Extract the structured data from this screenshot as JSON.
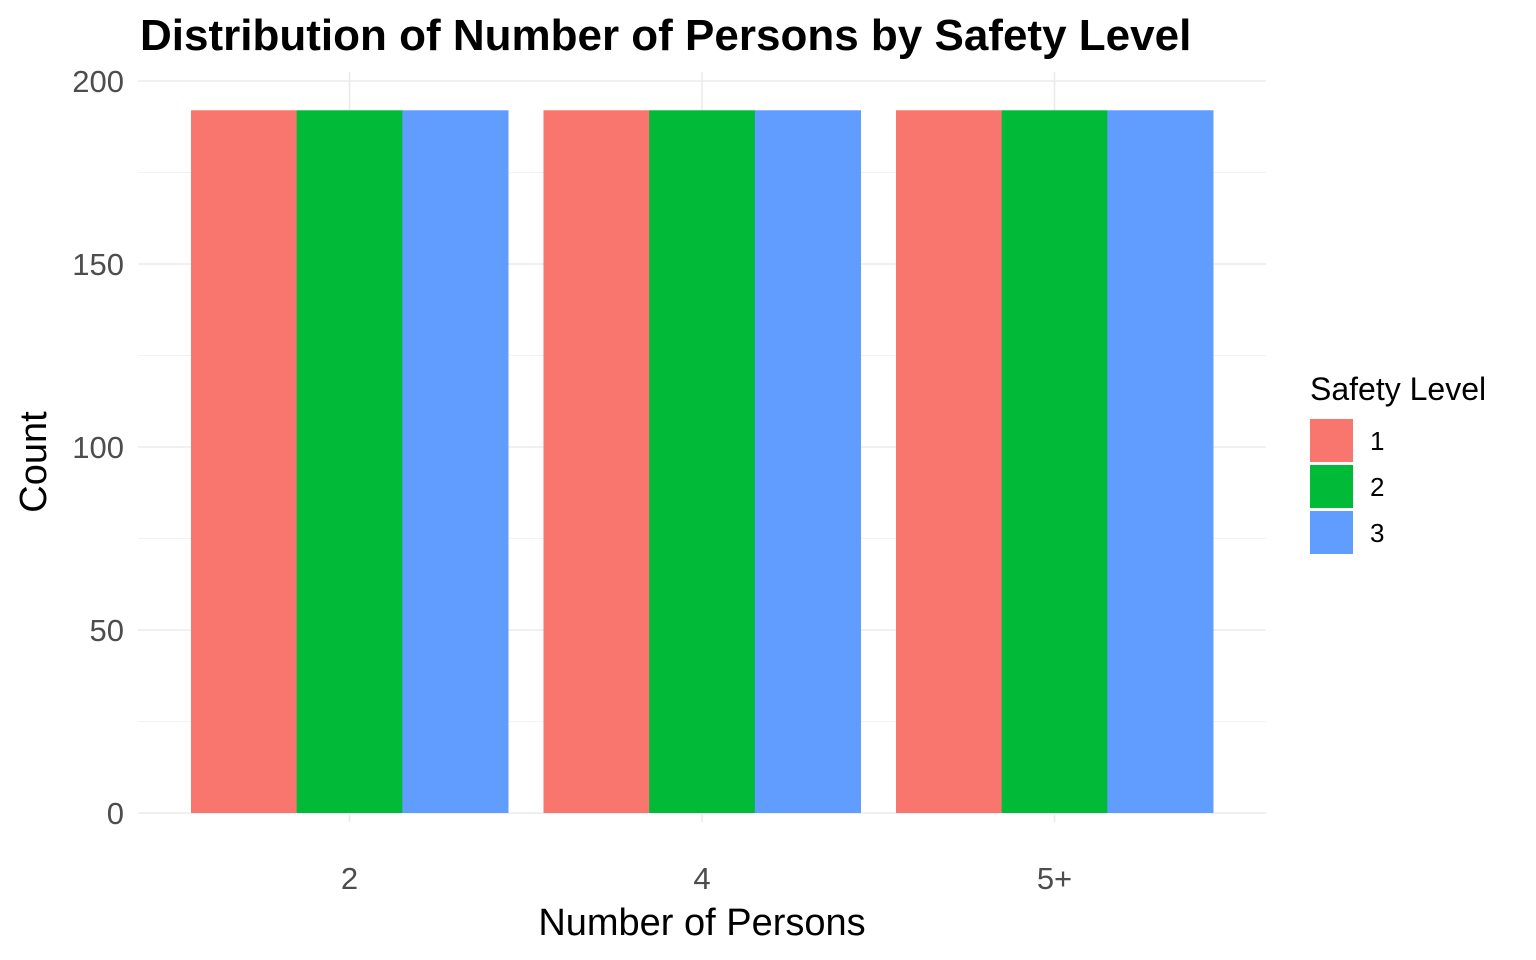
{
  "chart_data": {
    "type": "bar",
    "title": "Distribution of Number of Persons by Safety Level",
    "xlabel": "Number of Persons",
    "ylabel": "Count",
    "categories": [
      "2",
      "4",
      "5+"
    ],
    "series": [
      {
        "name": "1",
        "values": [
          192,
          192,
          192
        ],
        "color": "#F8766D"
      },
      {
        "name": "2",
        "values": [
          192,
          192,
          192
        ],
        "color": "#00BA38"
      },
      {
        "name": "3",
        "values": [
          192,
          192,
          192
        ],
        "color": "#619CFF"
      }
    ],
    "ylim": [
      0,
      200
    ],
    "yticks": [
      0,
      50,
      100,
      150,
      200
    ],
    "grid": true,
    "legend": {
      "title": "Safety Level",
      "position": "right"
    }
  }
}
